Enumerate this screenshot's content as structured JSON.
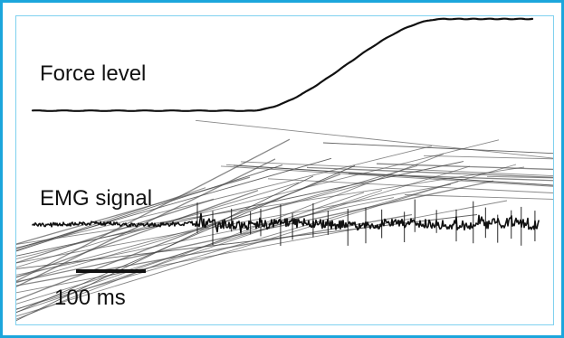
{
  "figure": {
    "force_label": "Force level",
    "emg_label": "EMG signal",
    "scale_label": "100 ms"
  },
  "colors": {
    "frame": "#1ba6dc",
    "panel_border": "#7fd1ef",
    "trace": "#111111",
    "spikes": "#4a4a4a",
    "background": "#ffffff"
  }
}
